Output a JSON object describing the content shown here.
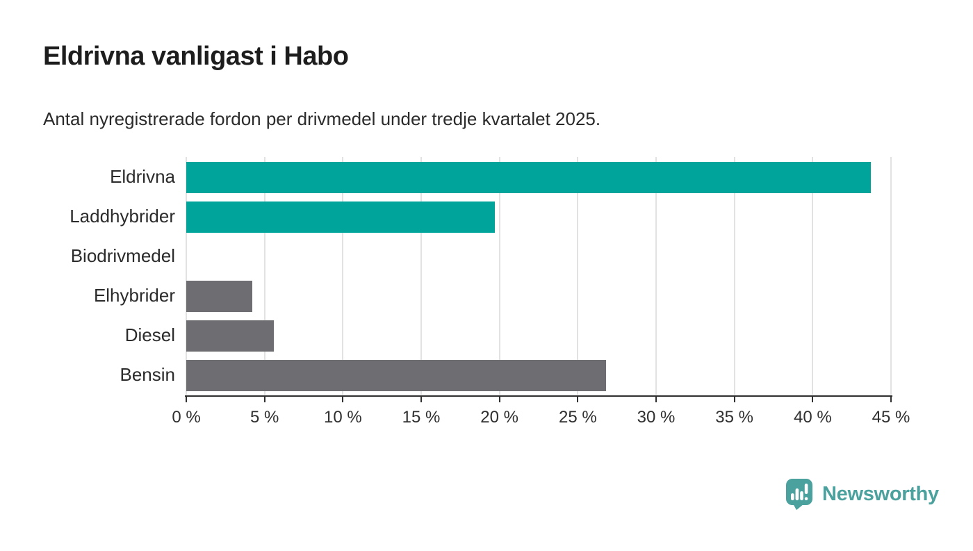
{
  "header": {
    "title": "Eldrivna vanligast i Habo",
    "subtitle": "Antal nyregistrerade fordon per drivmedel under tredje kvartalet 2025."
  },
  "chart_data": {
    "type": "bar",
    "orientation": "horizontal",
    "title": "Eldrivna vanligast i Habo",
    "subtitle": "Antal nyregistrerade fordon per drivmedel under tredje kvartalet 2025.",
    "categories": [
      "Eldrivna",
      "Laddhybrider",
      "Biodrivmedel",
      "Elhybrider",
      "Diesel",
      "Bensin"
    ],
    "values": [
      43.7,
      19.7,
      0,
      4.2,
      5.6,
      26.8
    ],
    "value_unit": "%",
    "bar_colors": [
      "#00a49b",
      "#00a49b",
      "#6d6d72",
      "#6d6d72",
      "#6d6d72",
      "#6d6d72"
    ],
    "xlabel": "",
    "ylabel": "",
    "xlim": [
      0,
      45
    ],
    "x_ticks": [
      0,
      5,
      10,
      15,
      20,
      25,
      30,
      35,
      40,
      45
    ],
    "x_tick_labels": [
      "0 %",
      "5 %",
      "10 %",
      "15 %",
      "20 %",
      "25 %",
      "30 %",
      "35 %",
      "40 %",
      "45 %"
    ],
    "grid": "vertical",
    "legend": "none"
  },
  "branding": {
    "logo_text": "Newsworthy",
    "logo_icon": "bar-chart-speech-bubble",
    "logo_color": "#4ba19d"
  },
  "colors": {
    "accent_teal": "#00a49b",
    "bar_gray": "#6d6d72",
    "gridline": "#e2e2e2",
    "axis": "#2f2f2f",
    "text": "#2b2b2b",
    "background": "#ffffff"
  }
}
